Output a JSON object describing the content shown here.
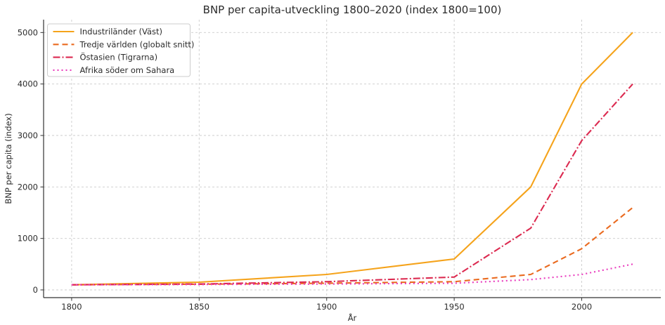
{
  "window": {
    "title": "BNP per capita-utveckling 1800–2020 (index 1800=100)"
  },
  "chart_data": {
    "type": "line",
    "title": "BNP per capita-utveckling 1800–2020 (index 1800=100)",
    "xlabel": "År",
    "ylabel": "BNP per capita (index)",
    "x": [
      1800,
      1850,
      1900,
      1950,
      1980,
      2000,
      2020
    ],
    "series": [
      {
        "name": "Industriländer (Väst)",
        "color": "#F5A31B",
        "dash": "solid",
        "values": [
          100,
          150,
          300,
          600,
          2000,
          4000,
          5000
        ]
      },
      {
        "name": "Tredje världen (globalt snitt)",
        "color": "#EA6A1F",
        "dash": "dashed",
        "values": [
          100,
          110,
          130,
          160,
          300,
          800,
          1600
        ]
      },
      {
        "name": "Östasien (Tigrarna)",
        "color": "#DC2A50",
        "dash": "dashdot",
        "values": [
          100,
          115,
          160,
          250,
          1200,
          2900,
          4000
        ]
      },
      {
        "name": "Afrika söder om Sahara",
        "color": "#E93CBE",
        "dash": "dotted",
        "values": [
          100,
          105,
          115,
          130,
          200,
          300,
          500
        ]
      }
    ],
    "xticks": [
      1800,
      1850,
      1900,
      1950,
      2000
    ],
    "yticks": [
      0,
      1000,
      2000,
      3000,
      4000,
      5000
    ],
    "xlim": [
      1789,
      2031
    ],
    "ylim": [
      -150,
      5250
    ],
    "grid": true,
    "grid_style": "dashed",
    "legend_position": "upper-left",
    "colors": {
      "grid": "#cccccc",
      "spine": "#333333",
      "text": "#2b2b2b",
      "legend_border": "#cccccc",
      "legend_bg": "#ffffff"
    }
  }
}
